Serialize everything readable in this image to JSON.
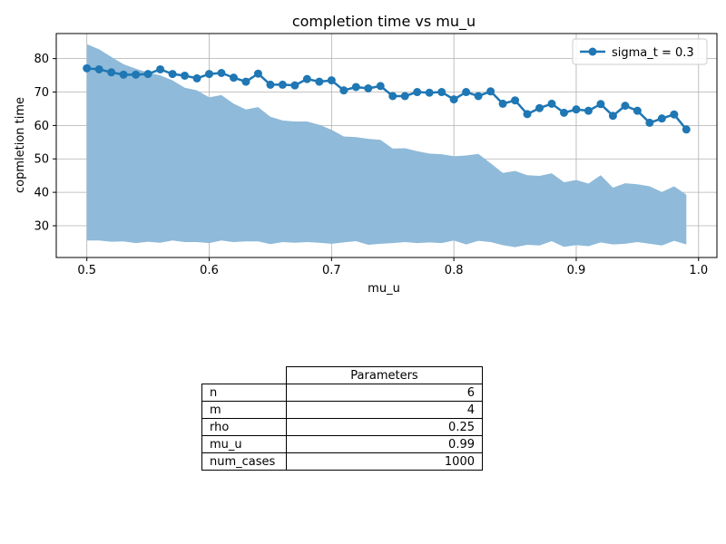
{
  "chart_data": {
    "type": "line",
    "title": "completion time vs mu_u",
    "xlabel": "mu_u",
    "ylabel": "copmletion time",
    "xlim": [
      0.475,
      1.015
    ],
    "ylim": [
      20.5,
      87.5
    ],
    "xticks": [
      0.5,
      0.6,
      0.7,
      0.8,
      0.9,
      1.0
    ],
    "xtick_labels": [
      "0.5",
      "0.6",
      "0.7",
      "0.8",
      "0.9",
      "1.0"
    ],
    "yticks": [
      30,
      40,
      50,
      60,
      70,
      80
    ],
    "ytick_labels": [
      "30",
      "40",
      "50",
      "60",
      "70",
      "80"
    ],
    "grid": true,
    "legend_position": "upper right",
    "colors": {
      "line": "#1f77b4",
      "band": "#8fbad9"
    },
    "x": [
      0.5,
      0.51,
      0.52,
      0.53,
      0.54,
      0.55,
      0.56,
      0.57,
      0.58,
      0.59,
      0.6,
      0.61,
      0.62,
      0.63,
      0.64,
      0.65,
      0.66,
      0.67,
      0.68,
      0.69,
      0.7,
      0.71,
      0.72,
      0.73,
      0.74,
      0.75,
      0.76,
      0.77,
      0.78,
      0.79,
      0.8,
      0.81,
      0.82,
      0.83,
      0.84,
      0.85,
      0.86,
      0.87,
      0.88,
      0.89,
      0.9,
      0.91,
      0.92,
      0.93,
      0.94,
      0.95,
      0.96,
      0.97,
      0.98,
      0.99
    ],
    "series": [
      {
        "name": "sigma_t = 0.3",
        "values": [
          77.1,
          76.8,
          75.9,
          75.2,
          75.2,
          75.4,
          76.8,
          75.4,
          74.9,
          74.1,
          75.4,
          75.7,
          74.3,
          73.1,
          75.5,
          72.2,
          72.2,
          72.0,
          73.9,
          73.1,
          73.5,
          70.5,
          71.5,
          71.1,
          71.8,
          68.8,
          68.8,
          70.0,
          69.8,
          70.0,
          67.8,
          70.0,
          68.8,
          70.2,
          66.5,
          67.5,
          63.4,
          65.2,
          66.5,
          63.8,
          64.8,
          64.4,
          66.4,
          62.9,
          65.9,
          64.4,
          60.8,
          62.1,
          63.3,
          58.8
        ]
      }
    ],
    "band": {
      "upper": [
        84.3,
        82.8,
        80.5,
        78.3,
        77.0,
        75.8,
        75.0,
        73.5,
        71.3,
        70.5,
        68.4,
        69.1,
        66.5,
        64.8,
        65.5,
        62.6,
        61.5,
        61.2,
        61.2,
        60.2,
        58.7,
        56.7,
        56.5,
        56.0,
        55.7,
        53.1,
        53.2,
        52.3,
        51.6,
        51.4,
        50.8,
        51.0,
        51.5,
        48.7,
        45.8,
        46.4,
        45.1,
        44.9,
        45.7,
        43.0,
        43.7,
        42.6,
        45.1,
        41.4,
        42.7,
        42.4,
        41.8,
        40.1,
        41.8,
        39.3
      ],
      "lower": [
        25.6,
        25.6,
        25.2,
        25.3,
        24.8,
        25.2,
        24.9,
        25.6,
        25.1,
        25.1,
        24.8,
        25.6,
        25.1,
        25.3,
        25.3,
        24.5,
        25.1,
        24.9,
        25.1,
        24.9,
        24.6,
        25.0,
        25.4,
        24.3,
        24.6,
        24.8,
        25.1,
        24.8,
        25.0,
        24.8,
        25.6,
        24.4,
        25.5,
        25.1,
        24.2,
        23.6,
        24.3,
        24.1,
        25.4,
        23.7,
        24.2,
        23.9,
        25.0,
        24.4,
        24.6,
        25.1,
        24.6,
        24.1,
        25.5,
        24.4
      ]
    }
  },
  "table": {
    "header": "Parameters",
    "rows": [
      {
        "key": "n",
        "value": "6"
      },
      {
        "key": "m",
        "value": "4"
      },
      {
        "key": "rho",
        "value": "0.25"
      },
      {
        "key": "mu_u",
        "value": "0.99"
      },
      {
        "key": "num_cases",
        "value": "1000"
      }
    ]
  }
}
